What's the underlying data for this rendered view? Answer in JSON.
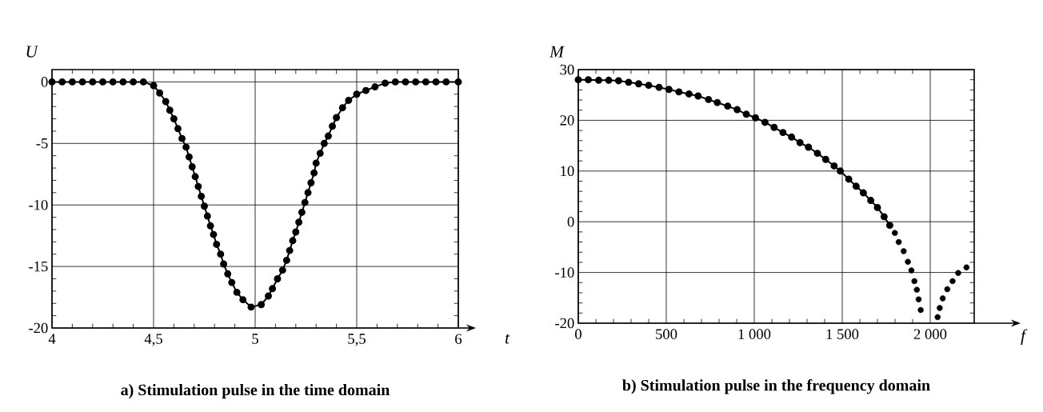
{
  "chart_data": [
    {
      "type": "line",
      "title": "a) Stimulation pulse in the time domain",
      "xlabel": "t",
      "ylabel": "U",
      "xlim": [
        4,
        6
      ],
      "ylim": [
        -20,
        1
      ],
      "xticks": [
        4,
        {
          "value": 4.5,
          "label": "4,5"
        },
        5,
        {
          "value": 5.5,
          "label": "5,5"
        },
        6
      ],
      "yticks": [
        -20,
        -15,
        -10,
        -5,
        0
      ],
      "grid": true,
      "marker": "circle",
      "line_style": "solid",
      "series": [
        {
          "color": "#000000",
          "x": [
            4.0,
            4.05,
            4.1,
            4.15,
            4.2,
            4.25,
            4.3,
            4.35,
            4.4,
            4.45,
            4.5,
            4.53,
            4.56,
            4.58,
            4.6,
            4.62,
            4.64,
            4.66,
            4.675,
            4.69,
            4.705,
            4.72,
            4.735,
            4.75,
            4.765,
            4.78,
            4.795,
            4.81,
            4.83,
            4.845,
            4.865,
            4.885,
            4.91,
            4.94,
            4.98,
            5.03,
            5.065,
            5.085,
            5.11,
            5.135,
            5.155,
            5.17,
            5.185,
            5.2,
            5.215,
            5.23,
            5.245,
            5.26,
            5.275,
            5.29,
            5.3,
            5.32,
            5.34,
            5.36,
            5.38,
            5.4,
            5.43,
            5.46,
            5.5,
            5.545,
            5.59,
            5.64,
            5.69,
            5.74,
            5.79,
            5.84,
            5.89,
            5.94,
            6.0
          ],
          "values": [
            0,
            0,
            0,
            0,
            0,
            0,
            0,
            0,
            0,
            0,
            -0.3,
            -0.9,
            -1.6,
            -2.3,
            -3.0,
            -3.8,
            -4.6,
            -5.3,
            -6.1,
            -6.9,
            -7.7,
            -8.5,
            -9.3,
            -10.1,
            -10.9,
            -11.7,
            -12.4,
            -13.2,
            -14.0,
            -14.8,
            -15.6,
            -16.3,
            -17.1,
            -17.7,
            -18.3,
            -18.1,
            -17.4,
            -16.8,
            -16.0,
            -15.3,
            -14.5,
            -13.7,
            -12.9,
            -12.2,
            -11.4,
            -10.6,
            -9.8,
            -9.0,
            -8.2,
            -7.4,
            -6.6,
            -5.8,
            -5.0,
            -4.4,
            -3.6,
            -2.9,
            -2.1,
            -1.5,
            -1.0,
            -0.7,
            -0.4,
            -0.1,
            0,
            0,
            0,
            0,
            0,
            0,
            0
          ]
        }
      ]
    },
    {
      "type": "line",
      "title": "b) Stimulation pulse in the frequency domain",
      "xlabel": "f",
      "ylabel": "M",
      "xlim": [
        0,
        2250
      ],
      "ylim": [
        -20,
        30
      ],
      "xticks": [
        0,
        500,
        {
          "value": 1000,
          "label": "1 000"
        },
        {
          "value": 1500,
          "label": "1 500"
        },
        {
          "value": 2000,
          "label": "2 000"
        }
      ],
      "yticks": [
        -20,
        -10,
        0,
        10,
        20,
        30
      ],
      "grid": true,
      "marker": "circle",
      "line_style": "solid",
      "series": [
        {
          "color": "#000000",
          "x": [
            0,
            57,
            116,
            173,
            229,
            286,
            343,
            400,
            459,
            515,
            572,
            629,
            681,
            740,
            790,
            849,
            903,
            955,
            1007,
            1061,
            1113,
            1163,
            1212,
            1260,
            1308,
            1359,
            1406,
            1454,
            1489,
            1537,
            1579,
            1620,
            1662,
            1700,
            1738,
            1770
          ],
          "values": [
            28.0,
            28.0,
            27.9,
            27.9,
            27.8,
            27.5,
            27.2,
            26.9,
            26.5,
            26.1,
            25.6,
            25.2,
            24.8,
            24.1,
            23.5,
            22.8,
            22.1,
            21.2,
            20.5,
            19.6,
            18.6,
            17.6,
            16.7,
            15.6,
            14.7,
            13.5,
            12.3,
            11.0,
            10.0,
            8.4,
            7.0,
            5.7,
            4.2,
            2.8,
            1.0,
            -0.7
          ]
        },
        {
          "type": "scatter",
          "color": "#000000",
          "x": [
            1799,
            1821,
            1849,
            1873,
            1893,
            1910,
            1924,
            1934,
            1946,
            2042,
            2054,
            2071,
            2097,
            2127,
            2159,
            2206
          ],
          "values": [
            -2.2,
            -4.0,
            -5.8,
            -7.9,
            -9.6,
            -11.7,
            -13.4,
            -15.3,
            -17.4,
            -18.8,
            -17.0,
            -15.1,
            -13.3,
            -11.7,
            -10.1,
            -9.0
          ]
        }
      ]
    }
  ]
}
